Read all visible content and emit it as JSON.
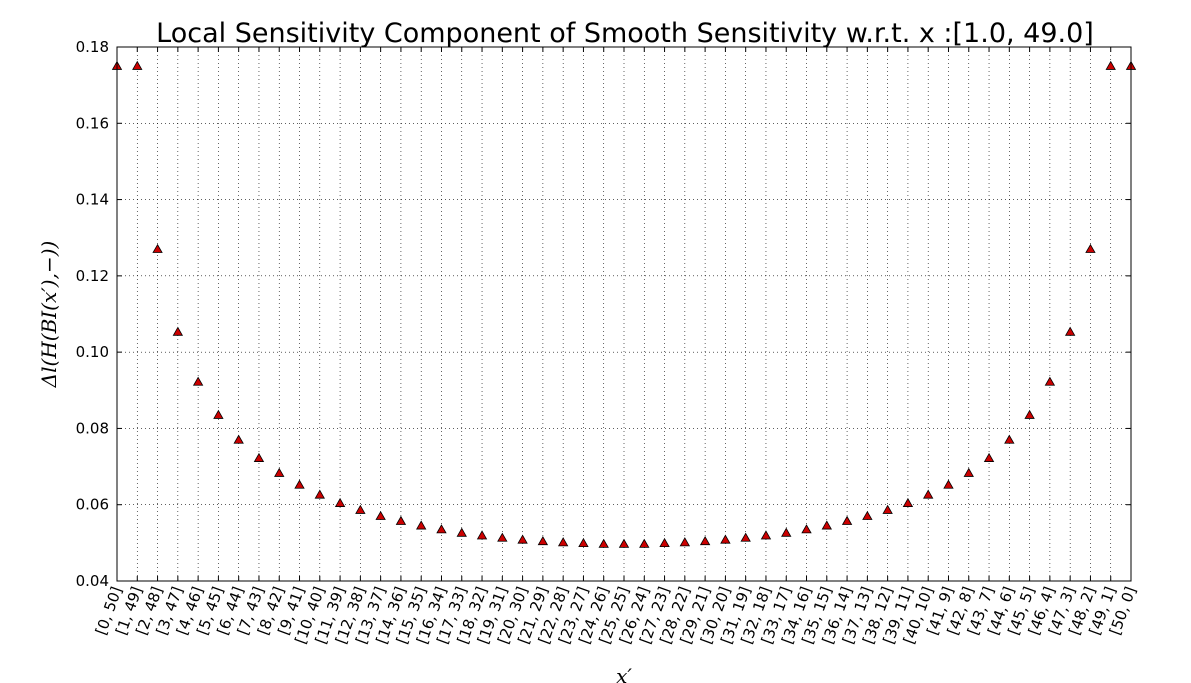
{
  "chart_data": {
    "type": "scatter",
    "title": "Local Sensitivity Component of Smooth Sensitivity w.r.t. x :[1.0, 49.0]",
    "xlabel": "x′",
    "ylabel": "Δl(H(BI(x′),−))",
    "ylim": [
      0.04,
      0.18
    ],
    "yticks": [
      "0.04",
      "0.06",
      "0.08",
      "0.10",
      "0.12",
      "0.14",
      "0.16",
      "0.18"
    ],
    "grid": true,
    "marker": "triangle",
    "marker_color": "#cc0000",
    "categories": [
      "[0, 50]",
      "[1, 49]",
      "[2, 48]",
      "[3, 47]",
      "[4, 46]",
      "[5, 45]",
      "[6, 44]",
      "[7, 43]",
      "[8, 42]",
      "[9, 41]",
      "[10, 40]",
      "[11, 39]",
      "[12, 38]",
      "[13, 37]",
      "[14, 36]",
      "[15, 35]",
      "[16, 34]",
      "[17, 33]",
      "[18, 32]",
      "[19, 31]",
      "[20, 30]",
      "[21, 29]",
      "[22, 28]",
      "[23, 27]",
      "[24, 26]",
      "[25, 25]",
      "[26, 24]",
      "[27, 23]",
      "[28, 22]",
      "[29, 21]",
      "[30, 20]",
      "[31, 19]",
      "[32, 18]",
      "[33, 17]",
      "[34, 16]",
      "[35, 15]",
      "[36, 14]",
      "[37, 13]",
      "[38, 12]",
      "[39, 11]",
      "[40, 10]",
      "[41, 9]",
      "[42, 8]",
      "[43, 7]",
      "[44, 6]",
      "[45, 5]",
      "[46, 4]",
      "[47, 3]",
      "[48, 2]",
      "[49, 1]",
      "[50, 0]"
    ],
    "values": [
      0.175,
      0.175,
      0.127,
      0.1053,
      0.0922,
      0.0835,
      0.077,
      0.0722,
      0.0683,
      0.0652,
      0.0626,
      0.0604,
      0.0586,
      0.057,
      0.0557,
      0.0545,
      0.0535,
      0.0526,
      0.0519,
      0.0513,
      0.0508,
      0.0504,
      0.0501,
      0.0499,
      0.0497,
      0.0497,
      0.0497,
      0.0499,
      0.0501,
      0.0504,
      0.0508,
      0.0513,
      0.0519,
      0.0526,
      0.0535,
      0.0545,
      0.0557,
      0.057,
      0.0586,
      0.0604,
      0.0626,
      0.0652,
      0.0683,
      0.0722,
      0.077,
      0.0835,
      0.0922,
      0.1053,
      0.127,
      0.175,
      0.175
    ]
  }
}
